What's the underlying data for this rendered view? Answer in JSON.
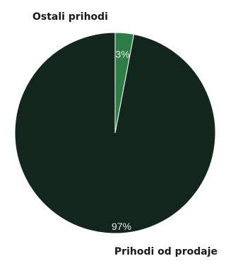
{
  "chart_data": {
    "type": "pie",
    "categories": [
      "Prihodi od prodaje",
      "Ostali prihodi"
    ],
    "values": [
      97,
      3
    ],
    "value_labels": [
      "97%",
      "3%"
    ],
    "colors": [
      "#12261e",
      "#2e7d46"
    ],
    "start": "top",
    "direction": "clockwise",
    "legend": "none"
  }
}
